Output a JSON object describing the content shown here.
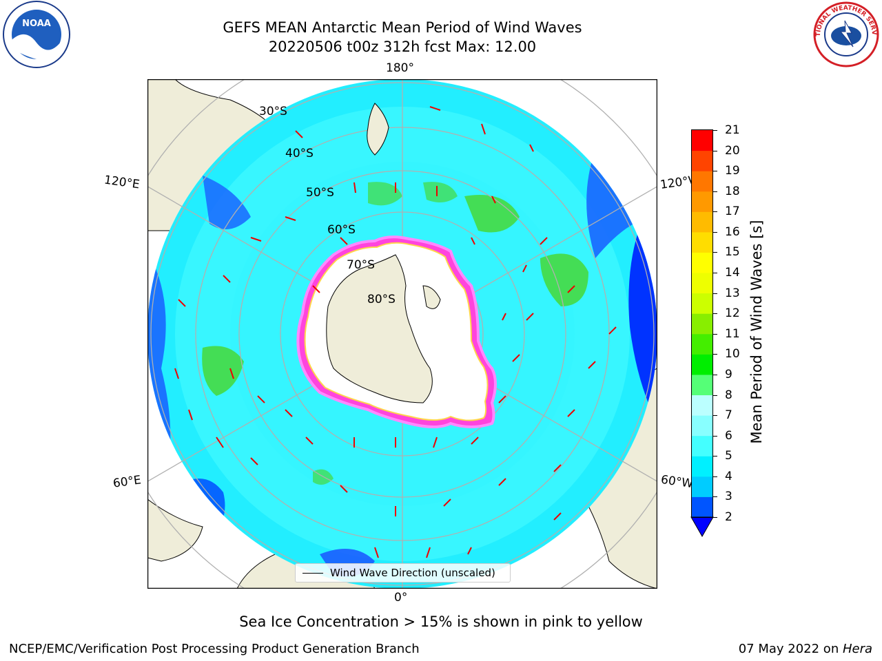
{
  "title": {
    "line1": "GEFS MEAN Antarctic Mean Period of Wind Waves",
    "line2": "20220506 t00z 312h fcst   Max: 12.00"
  },
  "logos": {
    "left": "NOAA",
    "right_text": "NATIONAL WEATHER SERVICE"
  },
  "map": {
    "projection": "south-polar-stereographic",
    "lon_labels": {
      "top": "180°",
      "bottom": "0°",
      "left_upper": "120°E",
      "left_lower": "60°E",
      "right_upper": "120°W",
      "right_lower": "60°W"
    },
    "lat_labels": [
      "30°S",
      "40°S",
      "50°S",
      "60°S",
      "70°S",
      "80°S"
    ],
    "colors": {
      "land": "#efedd9",
      "ice_shelf": "#ffffff",
      "sea_ice": "#ff44dd",
      "ocean_main": "#22eeff",
      "ocean_light": "#66ffff",
      "swell_green": "#44dd55",
      "deep_blue": "#0033ff",
      "arrows": "#ff0000"
    }
  },
  "legend": {
    "label": "Wind Wave Direction (unscaled)"
  },
  "colorbar": {
    "label": "Mean Period of Wind Waves [s]",
    "ticks": [
      "21",
      "20",
      "19",
      "18",
      "17",
      "16",
      "15",
      "14",
      "13",
      "12",
      "11",
      "10",
      "9",
      "8",
      "7",
      "6",
      "5",
      "4",
      "3",
      "2"
    ],
    "levels": [
      2,
      3,
      4,
      5,
      6,
      7,
      8,
      9,
      10,
      11,
      12,
      13,
      14,
      15,
      16,
      17,
      18,
      19,
      20,
      21
    ],
    "colors": [
      "#0055ff",
      "#00ccff",
      "#00f0ff",
      "#44ffff",
      "#88ffff",
      "#bbffff",
      "#55ff77",
      "#00ee00",
      "#44ee00",
      "#88ee00",
      "#ccff00",
      "#eeff00",
      "#ffff00",
      "#ffdd00",
      "#ffbb00",
      "#ff9900",
      "#ff7700",
      "#ff4400",
      "#ff0000"
    ],
    "under_color": "#0000ff"
  },
  "note": "Sea Ice Concentration > 15% is shown in pink to yellow",
  "footer": {
    "left": "NCEP/EMC/Verification Post Processing Product Generation Branch",
    "right_date": "07 May 2022 on ",
    "right_host": "Hera"
  }
}
